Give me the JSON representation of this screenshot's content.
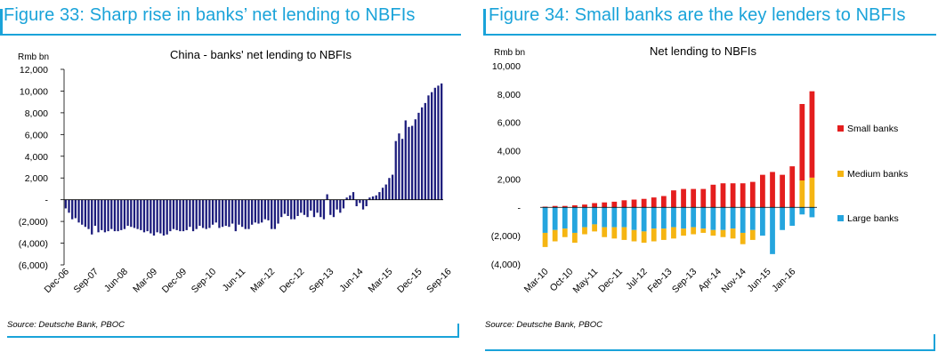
{
  "colors": {
    "accent": "#1aa3d9",
    "navy_bar": "#1c1c7c",
    "small_banks": "#e41e1e",
    "medium_banks": "#f5b512",
    "large_banks": "#25a5de"
  },
  "fig33": {
    "figure_title": "Figure 33: Sharp rise in banks’ net lending to NBFIs",
    "source": "Source: Deutsche Bank, PBOC"
  },
  "fig34": {
    "figure_title": "Figure 34: Small banks are the key lenders to NBFIs",
    "source": "Source: Deutsche Bank, PBOC"
  },
  "chart_data": [
    {
      "type": "bar",
      "title": "China - banks' net lending to NBFIs",
      "ylabel": "Rmb bn",
      "xlabel": "",
      "ylim": [
        -6000,
        12000
      ],
      "yticks": [
        12000,
        10000,
        8000,
        6000,
        4000,
        2000,
        0,
        -2000,
        -4000,
        -6000
      ],
      "ytick_labels": [
        "12,000",
        "10,000",
        "8,000",
        "6,000",
        "4,000",
        "2,000",
        "-",
        "(2,000)",
        "(4,000)",
        "(6,000)"
      ],
      "xtick_labels": [
        "Dec-06",
        "Sep-07",
        "Jun-08",
        "Mar-09",
        "Dec-09",
        "Sep-10",
        "Jun-11",
        "Mar-12",
        "Dec-12",
        "Sep-13",
        "Jun-14",
        "Mar-15",
        "Dec-15",
        "Sep-16"
      ],
      "series": [
        {
          "name": "Net lending to NBFIs",
          "values": [
            -800,
            -1200,
            -1800,
            -1700,
            -2100,
            -2300,
            -2500,
            -2700,
            -3200,
            -2400,
            -3000,
            -2800,
            -3000,
            -2900,
            -2700,
            -2900,
            -2900,
            -2800,
            -2700,
            -2400,
            -2500,
            -2600,
            -2700,
            -2800,
            -3000,
            -2900,
            -3100,
            -3300,
            -3000,
            -3100,
            -3300,
            -3200,
            -2900,
            -2700,
            -2800,
            -2900,
            -2900,
            -2800,
            -2500,
            -2900,
            -2700,
            -2400,
            -2600,
            -2700,
            -2600,
            -2300,
            -2100,
            -2600,
            -2500,
            -2400,
            -2500,
            -2200,
            -2900,
            -2300,
            -2500,
            -2700,
            -2700,
            -2300,
            -2100,
            -2200,
            -2100,
            -1800,
            -1900,
            -2700,
            -2700,
            -2200,
            -1600,
            -1300,
            -1500,
            -1800,
            -1800,
            -1500,
            -1200,
            -1400,
            -1600,
            -1000,
            -1600,
            -1200,
            -1600,
            -1800,
            500,
            -1400,
            -1600,
            -900,
            -1200,
            -800,
            200,
            400,
            700,
            -600,
            -300,
            -900,
            -600,
            200,
            300,
            400,
            700,
            1100,
            1400,
            2000,
            2300,
            5400,
            6100,
            5600,
            7300,
            6700,
            6800,
            7400,
            8000,
            8500,
            8900,
            9600,
            9900,
            10300,
            10500,
            10700
          ]
        }
      ]
    },
    {
      "type": "bar",
      "stacked": true,
      "title": "Net lending to NBFIs",
      "ylabel": "Rmb bn",
      "xlabel": "",
      "ylim": [
        -4000,
        10000
      ],
      "yticks": [
        10000,
        8000,
        6000,
        4000,
        2000,
        0,
        -2000,
        -4000
      ],
      "ytick_labels": [
        "10,000",
        "8,000",
        "6,000",
        "4,000",
        "2,000",
        "-",
        "(2,000)",
        "(4,000)"
      ],
      "xtick_labels": [
        "Mar-10",
        "Oct-10",
        "May-11",
        "Dec-11",
        "Jul-12",
        "Feb-13",
        "Sep-13",
        "Apr-14",
        "Nov-14",
        "Jun-15",
        "Jan-16"
      ],
      "series": [
        {
          "name": "Small banks",
          "values": [
            50,
            100,
            100,
            150,
            200,
            300,
            350,
            400,
            500,
            550,
            600,
            700,
            800,
            1200,
            1300,
            1300,
            1300,
            1600,
            1700,
            1700,
            1700,
            1800,
            2300,
            2500,
            2300,
            2900,
            5400,
            6100
          ]
        },
        {
          "name": "Medium banks",
          "values": [
            -1000,
            -800,
            -600,
            -700,
            -500,
            -500,
            -700,
            -800,
            -900,
            -800,
            -800,
            -900,
            -800,
            -800,
            -500,
            -500,
            -300,
            -400,
            -500,
            -700,
            -800,
            -700,
            0,
            0,
            0,
            0,
            1900,
            2100
          ]
        },
        {
          "name": "Large banks",
          "values": [
            -1800,
            -1600,
            -1500,
            -1800,
            -1400,
            -1200,
            -1400,
            -1400,
            -1400,
            -1600,
            -1700,
            -1500,
            -1500,
            -1400,
            -1500,
            -1400,
            -1500,
            -1600,
            -1600,
            -1500,
            -1800,
            -1600,
            -2000,
            -3300,
            -1600,
            -1300,
            -500,
            -700
          ]
        }
      ]
    }
  ]
}
